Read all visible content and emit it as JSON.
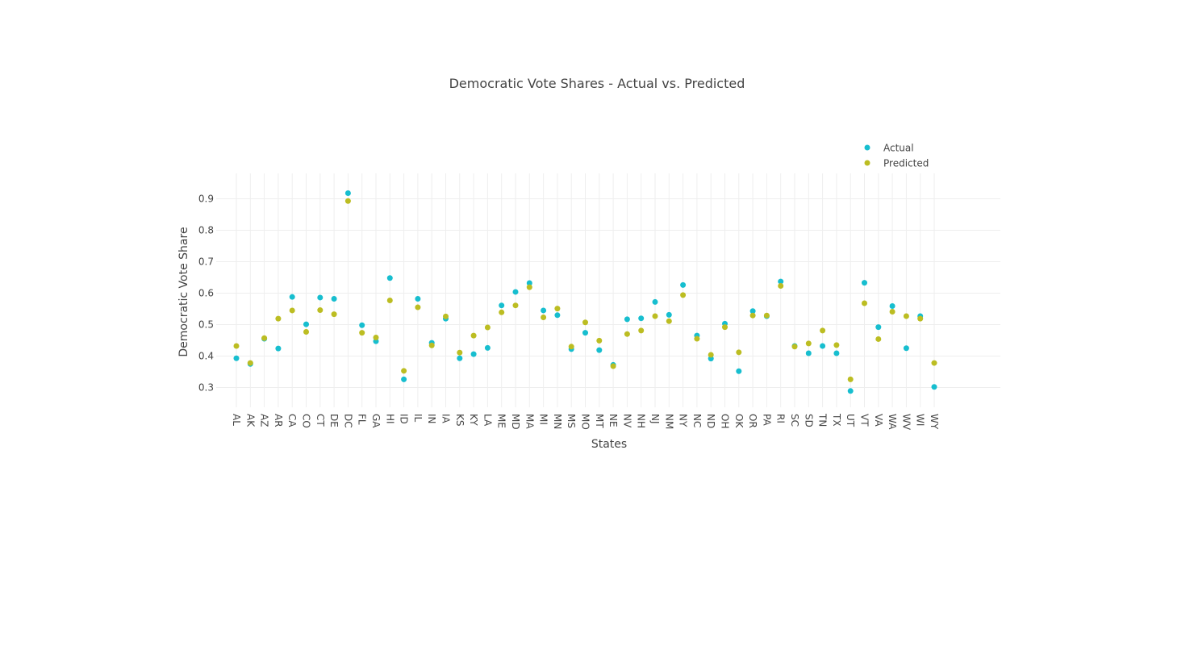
{
  "chart_data": {
    "type": "scatter",
    "title": "Democratic Vote Shares - Actual vs. Predicted",
    "xlabel": "States",
    "ylabel": "Democratic Vote Share",
    "ylim": [
      0.25,
      0.93
    ],
    "yticks": [
      0.3,
      0.4,
      0.5,
      0.6,
      0.7,
      0.8,
      0.9
    ],
    "ytick_labels": [
      "0.3",
      "0.4",
      "0.5",
      "0.6",
      "0.7",
      "0.8",
      "0.9"
    ],
    "grid": true,
    "legend_position": "top-right",
    "categories": [
      "AL",
      "AK",
      "AZ",
      "AR",
      "CA",
      "CO",
      "CT",
      "DE",
      "DC",
      "FL",
      "GA",
      "HI",
      "ID",
      "IL",
      "IN",
      "IA",
      "KS",
      "KY",
      "LA",
      "ME",
      "MD",
      "MA",
      "MI",
      "MN",
      "MS",
      "MO",
      "MT",
      "NE",
      "NV",
      "NH",
      "NJ",
      "NM",
      "NY",
      "NC",
      "ND",
      "OH",
      "OK",
      "OR",
      "PA",
      "RI",
      "SC",
      "SD",
      "TN",
      "TX",
      "UT",
      "VT",
      "VA",
      "WA",
      "WV",
      "WI",
      "WY"
    ],
    "series": [
      {
        "name": "Actual",
        "color": "#17becf",
        "values": [
          0.393,
          0.375,
          0.455,
          0.424,
          0.588,
          0.501,
          0.586,
          0.582,
          0.918,
          0.498,
          0.447,
          0.648,
          0.326,
          0.582,
          0.442,
          0.519,
          0.393,
          0.406,
          0.426,
          0.561,
          0.604,
          0.632,
          0.545,
          0.53,
          0.422,
          0.474,
          0.419,
          0.372,
          0.517,
          0.52,
          0.572,
          0.531,
          0.626,
          0.465,
          0.392,
          0.503,
          0.352,
          0.543,
          0.527,
          0.637,
          0.432,
          0.409,
          0.432,
          0.409,
          0.289,
          0.633,
          0.492,
          0.559,
          0.425,
          0.527,
          0.302
        ]
      },
      {
        "name": "Predicted",
        "color": "#bcbd22",
        "values": [
          0.432,
          0.378,
          0.457,
          0.519,
          0.545,
          0.477,
          0.546,
          0.533,
          0.893,
          0.474,
          0.459,
          0.577,
          0.353,
          0.555,
          0.434,
          0.526,
          0.411,
          0.465,
          0.491,
          0.539,
          0.561,
          0.619,
          0.523,
          0.551,
          0.43,
          0.507,
          0.449,
          0.368,
          0.47,
          0.481,
          0.527,
          0.511,
          0.594,
          0.455,
          0.404,
          0.492,
          0.412,
          0.529,
          0.529,
          0.623,
          0.43,
          0.44,
          0.481,
          0.435,
          0.326,
          0.568,
          0.454,
          0.541,
          0.527,
          0.519,
          0.378
        ]
      }
    ]
  }
}
